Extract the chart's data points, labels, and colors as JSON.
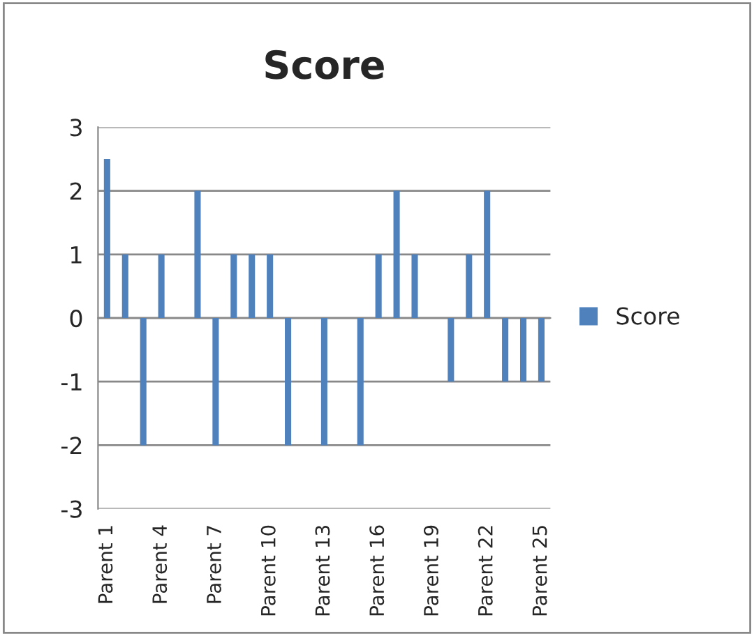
{
  "chart_data": {
    "type": "bar",
    "title": "Score",
    "categories": [
      "Parent 1",
      null,
      null,
      "Parent 4",
      null,
      null,
      "Parent 7",
      null,
      null,
      "Parent 10",
      null,
      null,
      "Parent 13",
      null,
      null,
      "Parent 16",
      null,
      null,
      "Parent 19",
      null,
      null,
      "Parent 22",
      null,
      null,
      "Parent 25"
    ],
    "series": [
      {
        "name": "Score",
        "color": "#4f81bd",
        "values": [
          2.5,
          1,
          -2,
          1,
          0,
          2,
          -2,
          1,
          1,
          1,
          -2,
          0,
          -2,
          0,
          -2,
          1,
          2,
          1,
          0,
          -1,
          1,
          2,
          -1,
          -1,
          -1
        ]
      }
    ],
    "ylim": [
      -3,
      3
    ],
    "yticks": [
      -3,
      -2,
      -1,
      0,
      1,
      2,
      3
    ],
    "grid": "y",
    "legend": "right"
  }
}
